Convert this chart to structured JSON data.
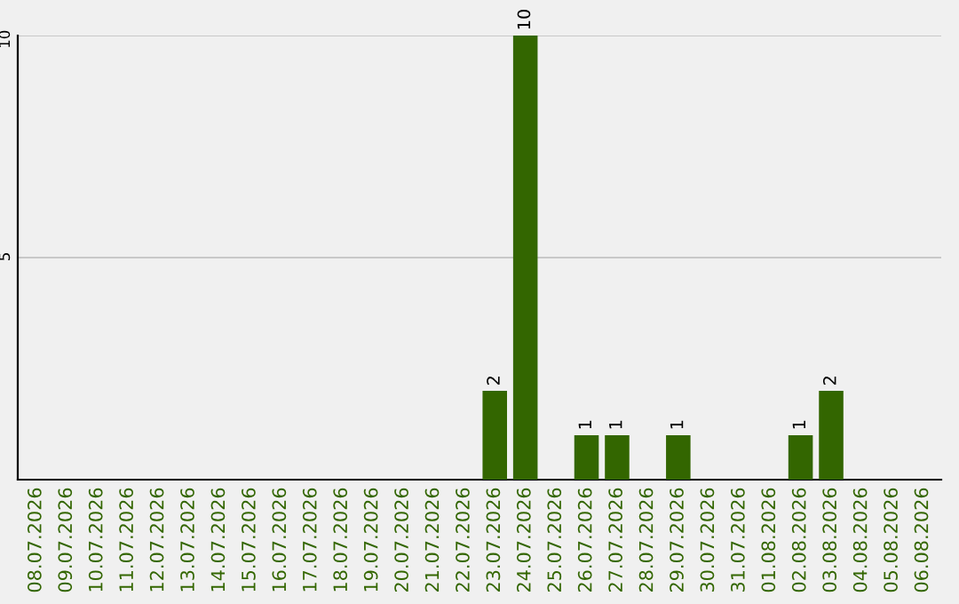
{
  "chart_data": {
    "type": "bar",
    "categories": [
      "08.07.2026",
      "09.07.2026",
      "10.07.2026",
      "11.07.2026",
      "12.07.2026",
      "13.07.2026",
      "14.07.2026",
      "15.07.2026",
      "16.07.2026",
      "17.07.2026",
      "18.07.2026",
      "19.07.2026",
      "20.07.2026",
      "21.07.2026",
      "22.07.2026",
      "23.07.2026",
      "24.07.2026",
      "25.07.2026",
      "26.07.2026",
      "27.07.2026",
      "28.07.2026",
      "29.07.2026",
      "30.07.2026",
      "31.07.2026",
      "01.08.2026",
      "02.08.2026",
      "03.08.2026",
      "04.08.2026",
      "05.08.2026",
      "06.08.2026"
    ],
    "values": [
      0,
      0,
      0,
      0,
      0,
      0,
      0,
      0,
      0,
      0,
      0,
      0,
      0,
      0,
      0,
      2,
      10,
      0,
      1,
      1,
      0,
      1,
      0,
      0,
      0,
      1,
      2,
      0,
      0,
      0
    ],
    "value_labels": [
      null,
      null,
      null,
      null,
      null,
      null,
      null,
      null,
      null,
      null,
      null,
      null,
      null,
      null,
      null,
      "2",
      "10",
      null,
      "1",
      "1",
      null,
      "1",
      null,
      null,
      null,
      "1",
      "2",
      null,
      null,
      null
    ],
    "color": "#336600",
    "ylim": [
      0,
      10
    ],
    "yticks": [
      5,
      10
    ],
    "grid": "y"
  }
}
